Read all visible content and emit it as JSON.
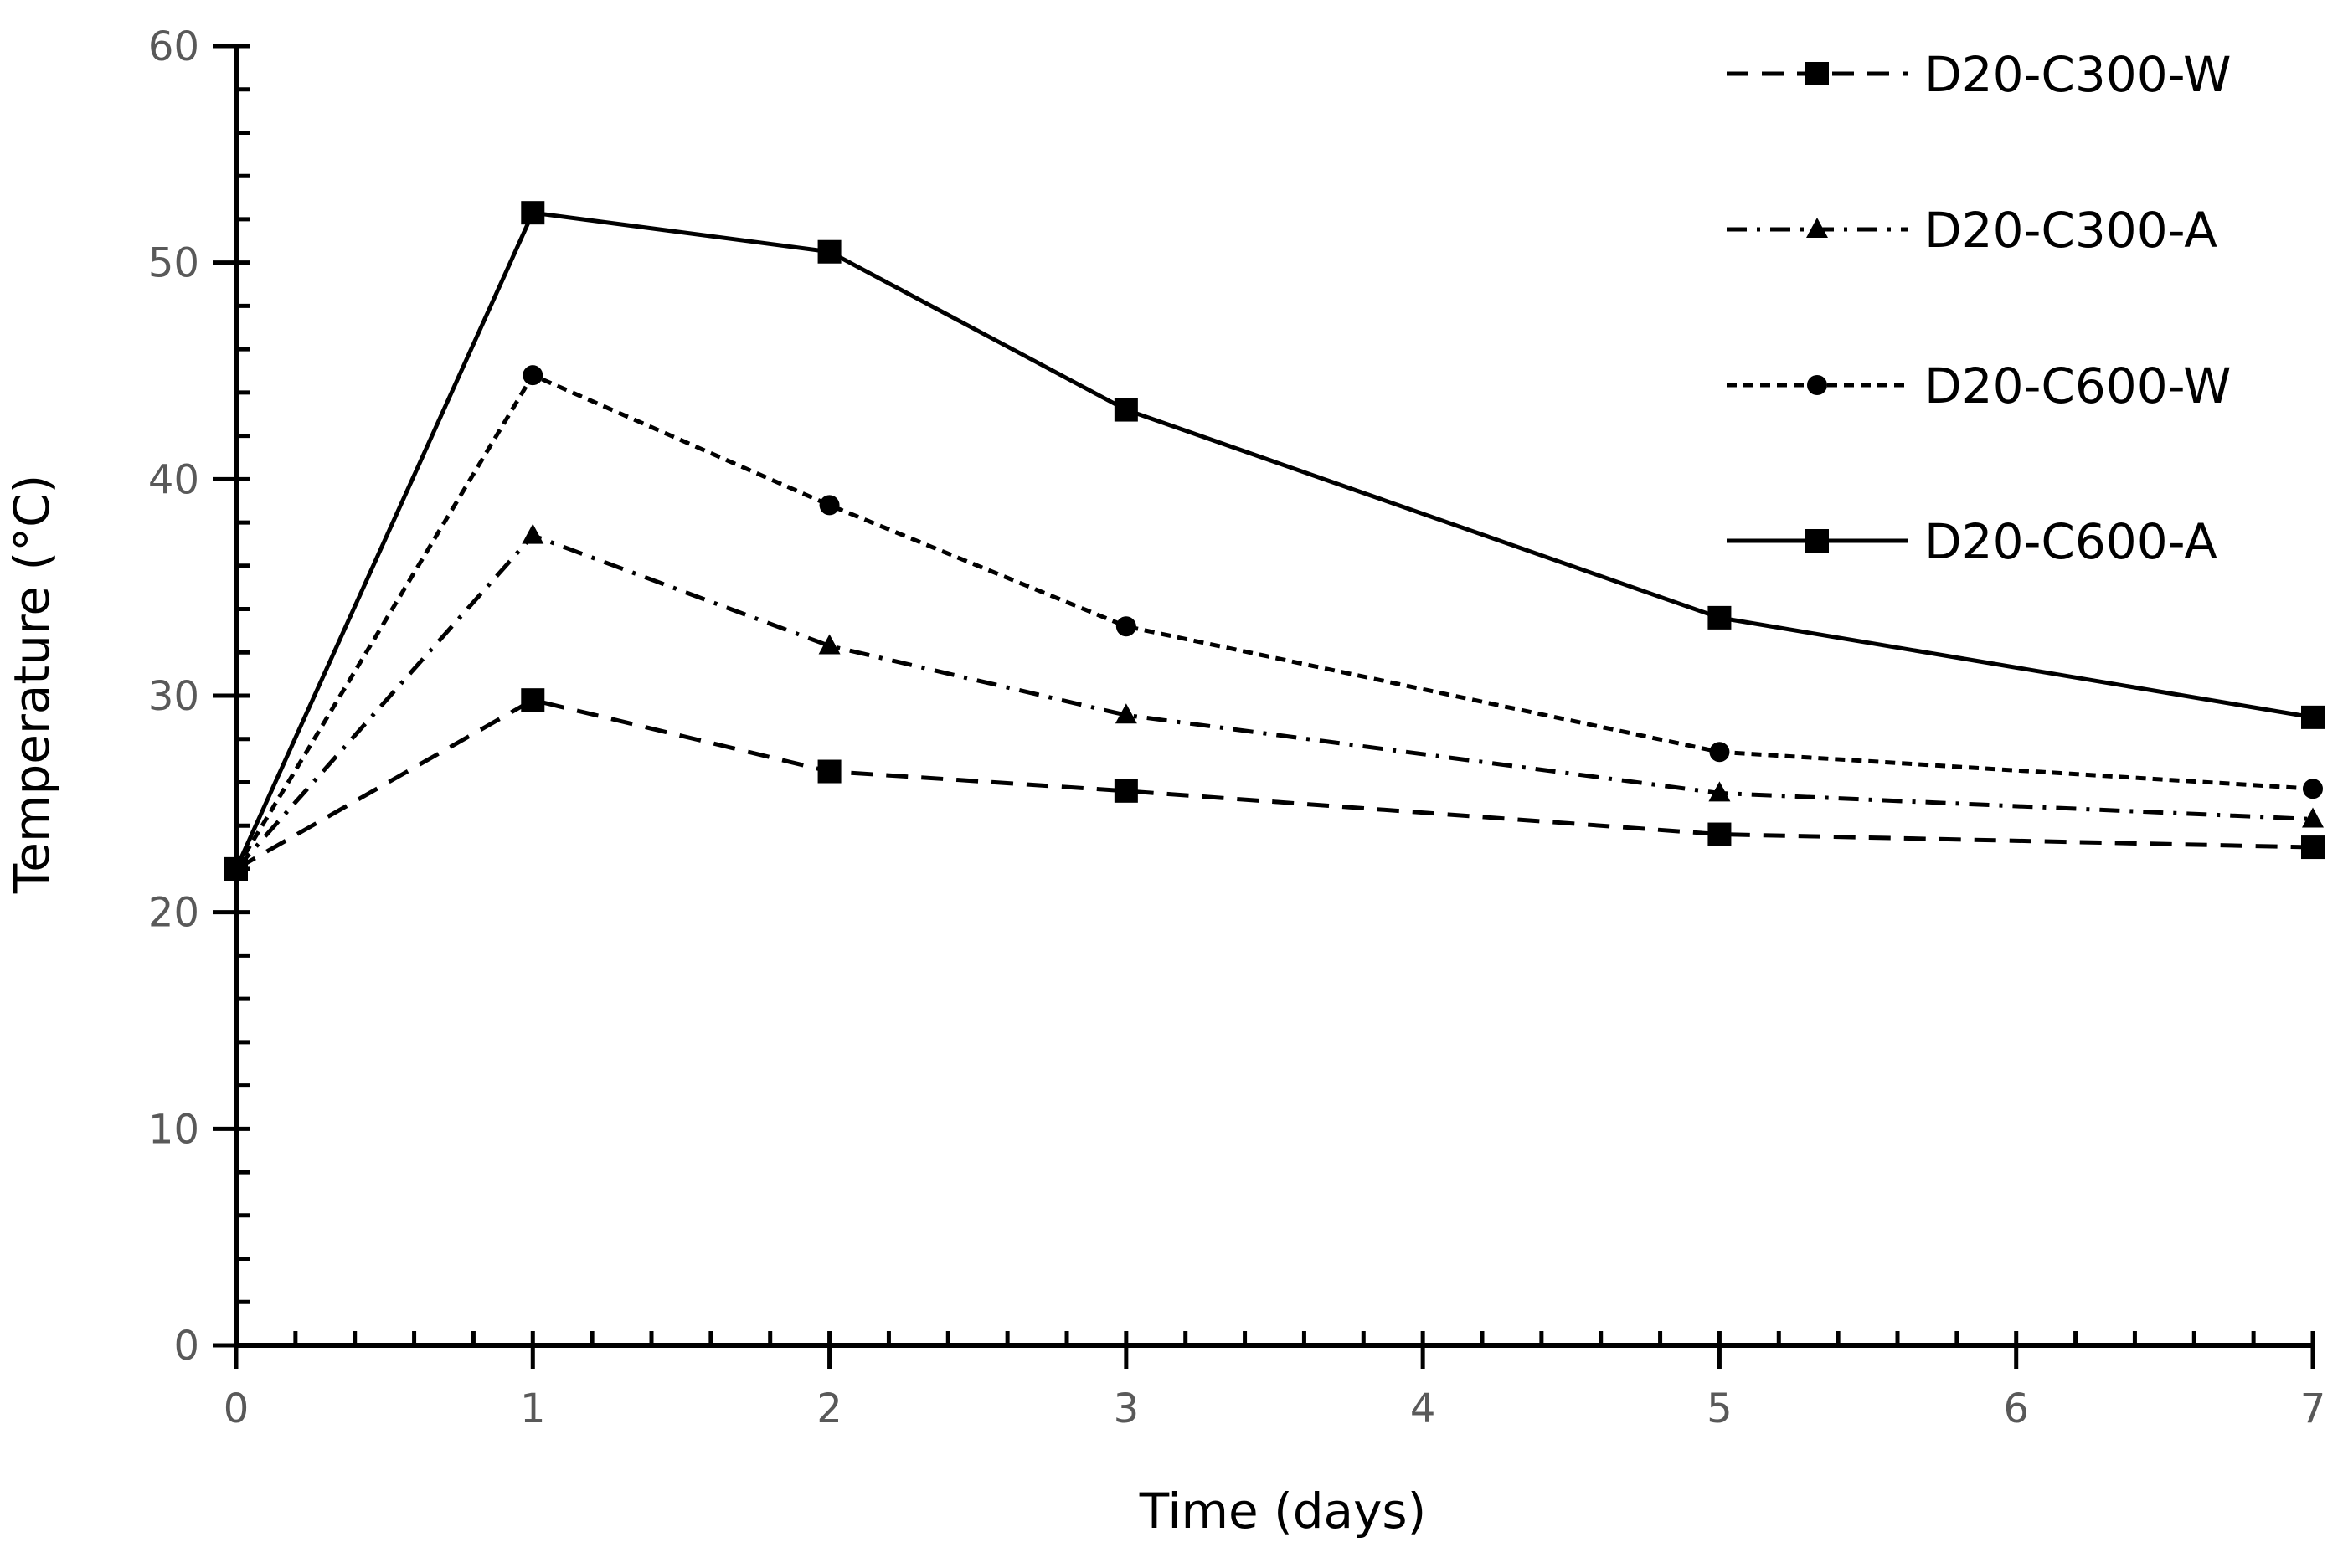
{
  "chart_data": {
    "type": "line",
    "title": "",
    "xlabel": "Time (days)",
    "ylabel": "Temperature (°C)",
    "xlim": [
      0,
      7
    ],
    "ylim": [
      0,
      60
    ],
    "x_ticks": [
      0,
      1,
      2,
      3,
      4,
      5,
      6,
      7
    ],
    "y_ticks": [
      0,
      10,
      20,
      30,
      40,
      50,
      60
    ],
    "x_minor_step": 0.2,
    "y_minor_step": 2,
    "grid": false,
    "legend_position": "top-right",
    "series": [
      {
        "name": "D20-C300-W",
        "line": "dashed",
        "marker": "square",
        "x": [
          0,
          1,
          2,
          3,
          5,
          7
        ],
        "y": [
          22.0,
          29.8,
          26.5,
          25.6,
          23.6,
          23.0
        ]
      },
      {
        "name": "D20-C300-A",
        "line": "dash-dot",
        "marker": "triangle",
        "x": [
          0,
          1,
          2,
          3,
          5,
          7
        ],
        "y": [
          22.0,
          37.4,
          32.3,
          29.1,
          25.5,
          24.3
        ]
      },
      {
        "name": "D20-C600-W",
        "line": "short-dash",
        "marker": "circle",
        "x": [
          0,
          1,
          2,
          3,
          5,
          7
        ],
        "y": [
          22.0,
          44.8,
          38.8,
          33.2,
          27.4,
          25.7
        ]
      },
      {
        "name": "D20-C600-A",
        "line": "solid",
        "marker": "square",
        "x": [
          0,
          1,
          2,
          3,
          5,
          7
        ],
        "y": [
          22.0,
          52.3,
          50.5,
          43.2,
          33.6,
          29.0
        ]
      }
    ]
  }
}
